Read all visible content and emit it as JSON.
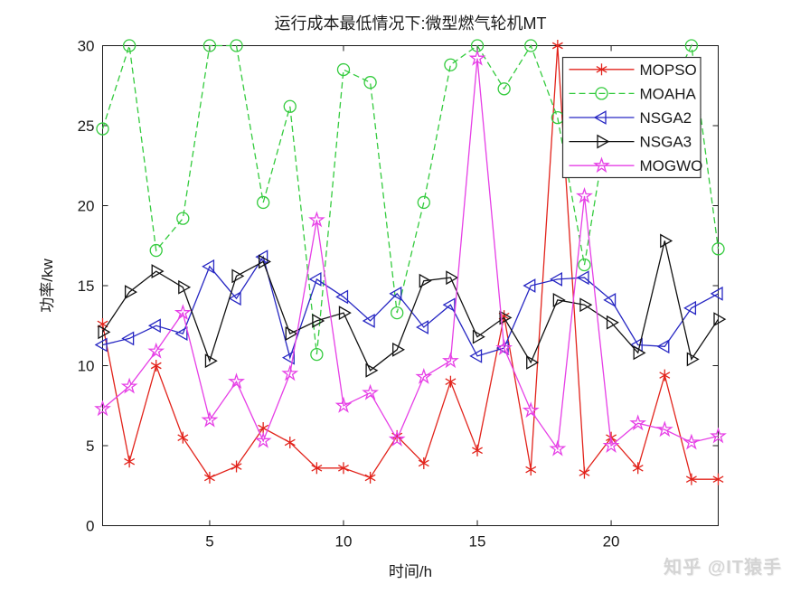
{
  "figure": {
    "watermark": "知乎 @IT猿手",
    "background": "#ffffff",
    "axis_color": "#1a1a1a"
  },
  "chart_data": {
    "type": "line",
    "title": "运行成本最低情况下:微型燃气轮机MT",
    "xlabel": "时间/h",
    "ylabel": "功率/kw",
    "xlim": [
      1,
      24
    ],
    "ylim": [
      0,
      30
    ],
    "x_ticks": [
      5,
      10,
      15,
      20
    ],
    "y_ticks": [
      0,
      5,
      10,
      15,
      20,
      25,
      30
    ],
    "grid": false,
    "legend_position": "upper-right-inside",
    "x": [
      1,
      2,
      3,
      4,
      5,
      6,
      7,
      8,
      9,
      10,
      11,
      12,
      13,
      14,
      15,
      16,
      17,
      18,
      19,
      20,
      21,
      22,
      23,
      24
    ],
    "series": [
      {
        "name": "MOPSO",
        "color": "#e2231b",
        "line": "solid",
        "marker": "asterisk",
        "values": [
          12.6,
          4.0,
          10.0,
          5.5,
          3.0,
          3.7,
          6.1,
          5.2,
          3.6,
          3.6,
          3.0,
          5.6,
          3.9,
          9.0,
          4.7,
          13.1,
          3.5,
          30.0,
          3.3,
          5.5,
          3.6,
          9.4,
          2.9,
          2.9
        ]
      },
      {
        "name": "MOAHA",
        "color": "#34cb3e",
        "line": "dashed",
        "marker": "circle",
        "values": [
          24.8,
          30.0,
          17.2,
          19.2,
          30.0,
          30.0,
          20.2,
          26.2,
          10.7,
          28.5,
          27.7,
          13.3,
          20.2,
          28.8,
          30.0,
          27.3,
          30.0,
          25.5,
          16.3,
          26.5,
          24.0,
          26.5,
          30.0,
          17.3
        ]
      },
      {
        "name": "NSGA2",
        "color": "#2727c3",
        "line": "solid",
        "marker": "triangle-left",
        "values": [
          11.3,
          11.7,
          12.5,
          12.0,
          16.2,
          14.2,
          16.8,
          10.5,
          15.4,
          14.3,
          12.8,
          14.5,
          12.4,
          13.8,
          10.6,
          11.1,
          15.0,
          15.4,
          15.5,
          14.1,
          11.3,
          11.2,
          13.6,
          14.5
        ]
      },
      {
        "name": "NSGA3",
        "color": "#111111",
        "line": "solid",
        "marker": "triangle-right",
        "values": [
          12.1,
          14.6,
          15.9,
          14.9,
          10.3,
          15.6,
          16.5,
          12.0,
          12.8,
          13.3,
          9.7,
          11.0,
          15.3,
          15.5,
          11.8,
          13.0,
          10.2,
          14.1,
          13.8,
          12.7,
          10.8,
          17.8,
          10.4,
          12.9
        ]
      },
      {
        "name": "MOGWO",
        "color": "#e63fe6",
        "line": "solid",
        "marker": "star5",
        "values": [
          7.3,
          8.7,
          10.9,
          13.3,
          6.6,
          9.0,
          5.3,
          9.5,
          19.1,
          7.5,
          8.3,
          5.4,
          9.3,
          10.3,
          29.2,
          11.1,
          7.2,
          4.8,
          20.6,
          5.0,
          6.4,
          6.0,
          5.2,
          5.6
        ]
      }
    ]
  }
}
